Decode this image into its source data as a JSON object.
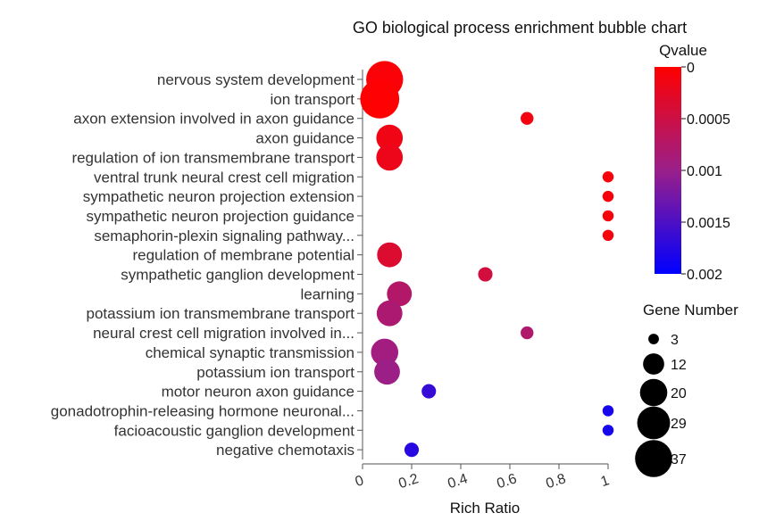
{
  "chart_data": {
    "type": "scatter",
    "title": "GO biological process enrichment bubble chart",
    "xlabel": "Rich Ratio",
    "ylabel": "",
    "xlim": [
      0,
      1
    ],
    "xticks": [
      "0",
      "0.2",
      "0.4",
      "0.6",
      "0.8",
      "1"
    ],
    "xtick_values": [
      0,
      0.2,
      0.4,
      0.6,
      0.8,
      1
    ],
    "grid": false,
    "color_legend": {
      "title": "Qvalue",
      "min": 0,
      "max": 0.002,
      "ticks": [
        "0",
        "0.0005",
        "0.001",
        "0.0015",
        "0.002"
      ],
      "tick_values": [
        0,
        0.0005,
        0.001,
        0.0015,
        0.002
      ],
      "low_color": "#ff0000",
      "high_color": "#0000ff",
      "placement": "top-right"
    },
    "size_legend": {
      "title": "Gene Number",
      "values": [
        3,
        12,
        20,
        29,
        37
      ],
      "labels": [
        "3",
        "12",
        "20",
        "29",
        "37"
      ],
      "placement": "right"
    },
    "points": [
      {
        "term": "nervous system development",
        "rich_ratio": 0.09,
        "qvalue": 5e-05,
        "gene_number": 33
      },
      {
        "term": "ion transport",
        "rich_ratio": 0.07,
        "qvalue": 2e-05,
        "gene_number": 37
      },
      {
        "term": "axon extension involved in axon guidance",
        "rich_ratio": 0.67,
        "qvalue": 0.00012,
        "gene_number": 4
      },
      {
        "term": "axon guidance",
        "rich_ratio": 0.11,
        "qvalue": 0.00015,
        "gene_number": 17
      },
      {
        "term": "regulation of ion transmembrane transport",
        "rich_ratio": 0.11,
        "qvalue": 0.00018,
        "gene_number": 17
      },
      {
        "term": "ventral trunk neural crest cell migration",
        "rich_ratio": 1.0,
        "qvalue": 8e-05,
        "gene_number": 3
      },
      {
        "term": "sympathetic neuron projection extension",
        "rich_ratio": 1.0,
        "qvalue": 8e-05,
        "gene_number": 3
      },
      {
        "term": "sympathetic neuron projection guidance",
        "rich_ratio": 1.0,
        "qvalue": 8e-05,
        "gene_number": 3
      },
      {
        "term": "semaphorin-plexin signaling pathway...",
        "rich_ratio": 1.0,
        "qvalue": 8e-05,
        "gene_number": 3
      },
      {
        "term": "regulation of membrane potential",
        "rich_ratio": 0.11,
        "qvalue": 0.00035,
        "gene_number": 15
      },
      {
        "term": "sympathetic ganglion development",
        "rich_ratio": 0.5,
        "qvalue": 0.00045,
        "gene_number": 5
      },
      {
        "term": "learning",
        "rich_ratio": 0.15,
        "qvalue": 0.00075,
        "gene_number": 15
      },
      {
        "term": "potassium ion transmembrane transport",
        "rich_ratio": 0.11,
        "qvalue": 0.00082,
        "gene_number": 16
      },
      {
        "term": "neural crest cell migration involved in...",
        "rich_ratio": 0.67,
        "qvalue": 0.00078,
        "gene_number": 4
      },
      {
        "term": "chemical synaptic transmission",
        "rich_ratio": 0.09,
        "qvalue": 0.00092,
        "gene_number": 18
      },
      {
        "term": "potassium ion transport",
        "rich_ratio": 0.1,
        "qvalue": 0.00098,
        "gene_number": 16
      },
      {
        "term": "motor neuron axon guidance",
        "rich_ratio": 0.27,
        "qvalue": 0.00165,
        "gene_number": 5
      },
      {
        "term": "gonadotrophin-releasing hormone neuronal...",
        "rich_ratio": 1.0,
        "qvalue": 0.00185,
        "gene_number": 3
      },
      {
        "term": "facioacoustic ganglion development",
        "rich_ratio": 1.0,
        "qvalue": 0.00185,
        "gene_number": 3
      },
      {
        "term": "negative chemotaxis",
        "rich_ratio": 0.2,
        "qvalue": 0.00175,
        "gene_number": 5
      }
    ]
  }
}
